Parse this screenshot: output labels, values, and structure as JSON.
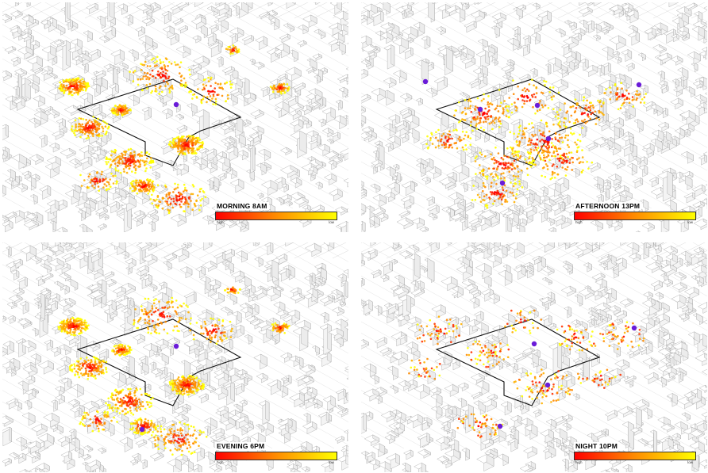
{
  "colors": {
    "high": "#ff0000",
    "mid": "#ff8c00",
    "low": "#ffff00",
    "marker": "#6a1bd8",
    "boundary": "#111111",
    "buildings": "#9a9a9a"
  },
  "panels": [
    {
      "id": "morning",
      "title": "MORNING 8AM",
      "legend_high": "high",
      "legend_low": "low",
      "density": "high"
    },
    {
      "id": "afternoon",
      "title": "AFTERNOON 13PM",
      "legend_high": "high",
      "legend_low": "low",
      "density": "medium"
    },
    {
      "id": "evening",
      "title": "EVENING 6PM",
      "legend_high": "high",
      "legend_low": "low",
      "density": "high"
    },
    {
      "id": "night",
      "title": "NIGHT 10PM",
      "legend_high": "high",
      "legend_low": "low",
      "density": "low"
    }
  ]
}
